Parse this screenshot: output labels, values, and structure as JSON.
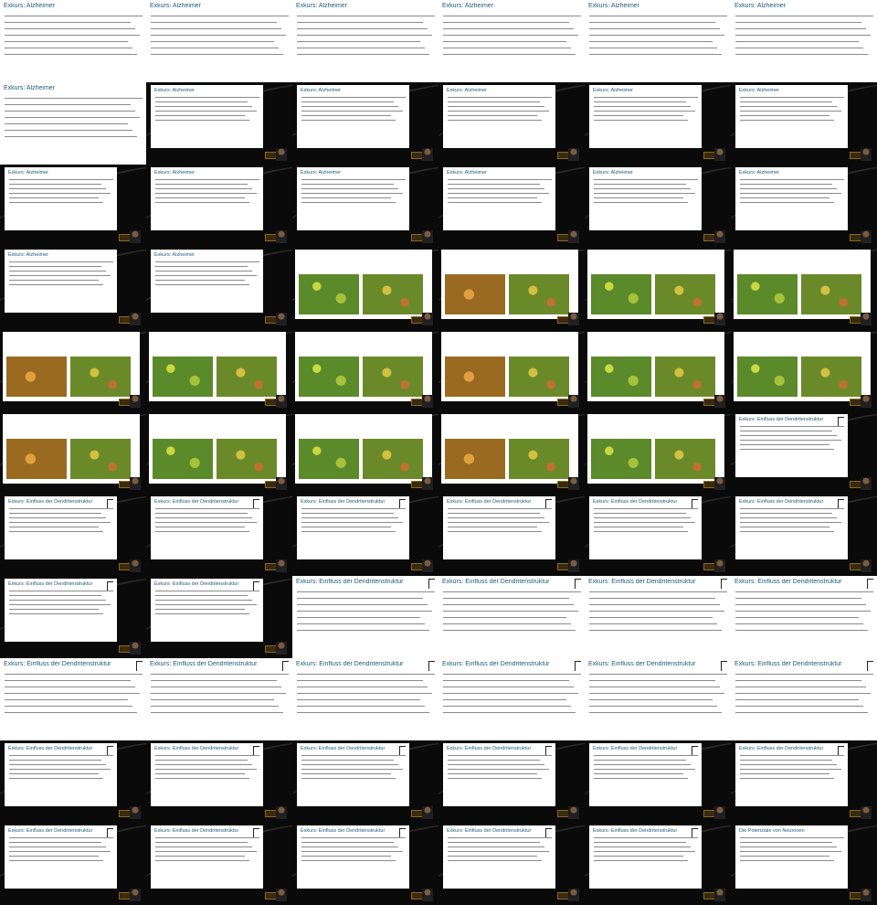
{
  "title_alzheimer": "Exkurs: Alzheimer",
  "title_dendriten": "Exkurs: Einfluss der Dendritenstruktur",
  "title_potenziale": "Die Potenziale von Neuronen",
  "frames": [
    "A",
    "A",
    "A",
    "A",
    "A",
    "A",
    "A",
    "B",
    "B",
    "B",
    "B",
    "B",
    "B",
    "B",
    "B",
    "B",
    "B",
    "B",
    "B",
    "B",
    "M",
    "M",
    "M",
    "M",
    "M",
    "M",
    "M",
    "M",
    "M",
    "M",
    "M",
    "M",
    "M",
    "M",
    "M",
    "D",
    "D",
    "D",
    "D",
    "D",
    "D",
    "D",
    "D",
    "D",
    "E",
    "E",
    "E",
    "E",
    "E",
    "E",
    "E",
    "E",
    "E",
    "E",
    "D",
    "D",
    "D",
    "D",
    "D",
    "D",
    "D",
    "D",
    "D",
    "D",
    "D",
    "P"
  ]
}
